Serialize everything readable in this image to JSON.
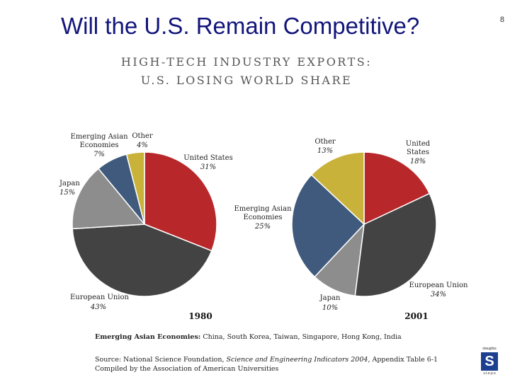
{
  "slide": {
    "title": "Will the U.S. Remain Competitive?",
    "page_number": "8"
  },
  "chart_heading": {
    "line1": "HIGH-TECH INDUSTRY EXPORTS:",
    "line2": "U.S. LOSING WORLD SHARE"
  },
  "chart_data": [
    {
      "type": "pie",
      "title": "1980",
      "slices": [
        {
          "label": "United States",
          "value": 31,
          "pct_text": "31%",
          "color": "#b8282a"
        },
        {
          "label": "European Union",
          "value": 43,
          "pct_text": "43%",
          "color": "#434343"
        },
        {
          "label": "Japan",
          "value": 15,
          "pct_text": "15%",
          "color": "#8d8d8d"
        },
        {
          "label": "Emerging Asian Economies",
          "value": 7,
          "pct_text": "7%",
          "color": "#3f5a7c"
        },
        {
          "label": "Other",
          "value": 4,
          "pct_text": "4%",
          "color": "#c9b23a"
        }
      ]
    },
    {
      "type": "pie",
      "title": "2001",
      "slices": [
        {
          "label": "United States",
          "value": 18,
          "pct_text": "18%",
          "color": "#b8282a"
        },
        {
          "label": "European Union",
          "value": 34,
          "pct_text": "34%",
          "color": "#434343"
        },
        {
          "label": "Japan",
          "value": 10,
          "pct_text": "10%",
          "color": "#8d8d8d"
        },
        {
          "label": "Emerging Asian Economies",
          "value": 25,
          "pct_text": "25%",
          "color": "#3f5a7c"
        },
        {
          "label": "Other",
          "value": 13,
          "pct_text": "13%",
          "color": "#c9b23a"
        }
      ]
    }
  ],
  "footnote": {
    "term": "Emerging Asian Economies:",
    "definition": " China, South Korea, Taiwan, Singapore, Hong Kong, India"
  },
  "source": {
    "prefix": "Source: National Science Foundation, ",
    "publication": "Science and Engineering Indicators 2004",
    "suffix": ", Appendix Table 6-1",
    "compiled": "Compiled by the Association of American Universities"
  },
  "logo": {
    "top_text": "staugliss",
    "letter": "S",
    "bottom_text": "s.t.e.p.s"
  }
}
